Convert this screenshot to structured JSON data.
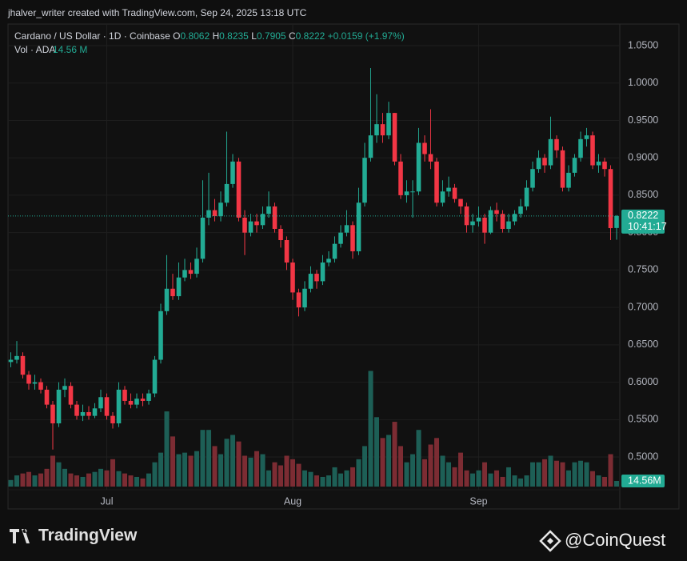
{
  "header": {
    "credit": "jhalver_writer created with TradingView.com, Sep 24, 2025 13:18 UTC"
  },
  "chart_data": {
    "type": "candlestick",
    "title": "Cardano / US Dollar · 1D · Coinbase",
    "legend_labels": [
      "O",
      "H",
      "L",
      "C"
    ],
    "change": "+0.0159 (+1.97%)",
    "volume_title": "Vol · ADA",
    "volume_legend": "14.56 M",
    "volume_axis_label": "14.56M",
    "countdown": "10:41:17",
    "up_color": "#22ab94",
    "down_color": "#f23645",
    "vol_up_color": "#1d5f56",
    "vol_down_color": "#7c2c33",
    "grid": true,
    "ylim": [
      0.4305,
      1.0789
    ],
    "yticks": [
      {
        "value": 0.5,
        "label": "0.5000"
      },
      {
        "value": 0.55,
        "label": "0.5500"
      },
      {
        "value": 0.6,
        "label": "0.6000"
      },
      {
        "value": 0.65,
        "label": "0.6500"
      },
      {
        "value": 0.7,
        "label": "0.7000"
      },
      {
        "value": 0.75,
        "label": "0.7500"
      },
      {
        "value": 0.8,
        "label": "0.8000"
      },
      {
        "value": 0.85,
        "label": "0.8500"
      },
      {
        "value": 0.9,
        "label": "0.9000"
      },
      {
        "value": 0.95,
        "label": "0.9500"
      },
      {
        "value": 1.0,
        "label": "1.0000"
      },
      {
        "value": 1.05,
        "label": "1.0500"
      }
    ],
    "vol_ylim": [
      0,
      1200
    ],
    "categories": [
      null,
      null,
      null,
      null,
      null,
      null,
      null,
      null,
      null,
      null,
      null,
      null,
      null,
      null,
      null,
      null,
      "Jul",
      null,
      null,
      null,
      null,
      null,
      null,
      null,
      null,
      null,
      null,
      null,
      null,
      null,
      null,
      null,
      null,
      null,
      null,
      null,
      null,
      null,
      null,
      null,
      null,
      null,
      null,
      null,
      null,
      null,
      null,
      "Aug",
      null,
      null,
      null,
      null,
      null,
      null,
      null,
      null,
      null,
      null,
      null,
      null,
      null,
      null,
      null,
      null,
      null,
      null,
      null,
      null,
      null,
      null,
      null,
      null,
      null,
      null,
      null,
      null,
      null,
      null,
      "Sep",
      null,
      null,
      null,
      null,
      null,
      null,
      null,
      null,
      null,
      null,
      null,
      null,
      null,
      null,
      null,
      null,
      null,
      null,
      null,
      null,
      null,
      null,
      null
    ],
    "open": [
      0.627,
      0.63,
      0.635,
      0.61,
      0.598,
      0.6,
      0.59,
      0.57,
      0.545,
      0.59,
      0.595,
      0.57,
      0.555,
      0.56,
      0.555,
      0.565,
      0.58,
      0.555,
      0.545,
      0.59,
      0.575,
      0.57,
      0.578,
      0.575,
      0.585,
      0.63,
      0.695,
      0.725,
      0.715,
      0.74,
      0.75,
      0.745,
      0.765,
      0.82,
      0.83,
      0.822,
      0.84,
      0.865,
      0.895,
      0.82,
      0.8,
      0.815,
      0.81,
      0.825,
      0.835,
      0.805,
      0.79,
      0.76,
      0.72,
      0.7,
      0.725,
      0.745,
      0.735,
      0.76,
      0.765,
      0.785,
      0.8,
      0.81,
      0.775,
      0.84,
      0.9,
      0.93,
      0.945,
      0.93,
      0.96,
      0.895,
      0.85,
      0.855,
      0.855,
      0.92,
      0.905,
      0.895,
      0.84,
      0.855,
      0.86,
      0.845,
      0.835,
      0.81,
      0.815,
      0.82,
      0.8,
      0.83,
      0.825,
      0.805,
      0.815,
      0.825,
      0.835,
      0.86,
      0.885,
      0.9,
      0.89,
      0.925,
      0.91,
      0.86,
      0.88,
      0.9,
      0.925,
      0.93,
      0.89,
      0.895,
      0.885,
      0.8062
    ],
    "high": [
      0.64,
      0.655,
      0.64,
      0.615,
      0.61,
      0.605,
      0.595,
      0.575,
      0.6,
      0.605,
      0.6,
      0.575,
      0.57,
      0.568,
      0.572,
      0.59,
      0.585,
      0.56,
      0.6,
      0.595,
      0.585,
      0.585,
      0.585,
      0.59,
      0.635,
      0.705,
      0.77,
      0.745,
      0.76,
      0.765,
      0.76,
      0.78,
      0.87,
      0.88,
      0.845,
      0.855,
      0.935,
      0.905,
      0.9,
      0.83,
      0.825,
      0.825,
      0.835,
      0.855,
      0.84,
      0.81,
      0.795,
      0.765,
      0.725,
      0.735,
      0.755,
      0.75,
      0.77,
      0.775,
      0.795,
      0.81,
      0.83,
      0.815,
      0.86,
      0.92,
      1.02,
      0.985,
      0.96,
      0.975,
      0.96,
      0.905,
      0.87,
      0.87,
      0.94,
      0.93,
      0.965,
      0.9,
      0.87,
      0.875,
      0.865,
      0.845,
      0.84,
      0.825,
      0.835,
      0.825,
      0.835,
      0.84,
      0.83,
      0.825,
      0.83,
      0.845,
      0.87,
      0.895,
      0.91,
      0.905,
      0.955,
      0.93,
      0.915,
      0.89,
      0.905,
      0.935,
      0.94,
      0.935,
      0.905,
      0.9,
      0.89,
      0.8235
    ],
    "low": [
      0.62,
      0.625,
      0.605,
      0.59,
      0.59,
      0.585,
      0.565,
      0.51,
      0.54,
      0.58,
      0.565,
      0.55,
      0.548,
      0.55,
      0.552,
      0.56,
      0.55,
      0.538,
      0.54,
      0.57,
      0.565,
      0.565,
      0.568,
      0.57,
      0.58,
      0.625,
      0.69,
      0.71,
      0.71,
      0.735,
      0.738,
      0.74,
      0.76,
      0.81,
      0.815,
      0.815,
      0.835,
      0.86,
      0.815,
      0.77,
      0.795,
      0.8,
      0.805,
      0.82,
      0.8,
      0.78,
      0.75,
      0.71,
      0.688,
      0.695,
      0.72,
      0.725,
      0.73,
      0.755,
      0.76,
      0.78,
      0.795,
      0.765,
      0.77,
      0.835,
      0.895,
      0.92,
      0.92,
      0.925,
      0.89,
      0.845,
      0.84,
      0.82,
      0.85,
      0.895,
      0.885,
      0.835,
      0.835,
      0.848,
      0.84,
      0.825,
      0.8,
      0.8,
      0.808,
      0.785,
      0.798,
      0.815,
      0.8,
      0.8,
      0.81,
      0.82,
      0.83,
      0.855,
      0.88,
      0.88,
      0.885,
      0.9,
      0.855,
      0.855,
      0.875,
      0.895,
      0.915,
      0.885,
      0.88,
      0.875,
      0.79,
      0.7905
    ],
    "close": [
      0.63,
      0.635,
      0.61,
      0.598,
      0.6,
      0.59,
      0.57,
      0.545,
      0.59,
      0.595,
      0.57,
      0.555,
      0.56,
      0.555,
      0.565,
      0.58,
      0.555,
      0.545,
      0.59,
      0.575,
      0.57,
      0.578,
      0.575,
      0.585,
      0.63,
      0.695,
      0.725,
      0.715,
      0.74,
      0.75,
      0.745,
      0.765,
      0.82,
      0.83,
      0.822,
      0.84,
      0.865,
      0.895,
      0.82,
      0.8,
      0.815,
      0.81,
      0.825,
      0.835,
      0.805,
      0.79,
      0.76,
      0.72,
      0.7,
      0.725,
      0.745,
      0.735,
      0.76,
      0.765,
      0.785,
      0.8,
      0.81,
      0.775,
      0.84,
      0.9,
      0.93,
      0.945,
      0.93,
      0.96,
      0.895,
      0.85,
      0.855,
      0.855,
      0.92,
      0.905,
      0.895,
      0.84,
      0.855,
      0.86,
      0.845,
      0.835,
      0.81,
      0.815,
      0.82,
      0.8,
      0.83,
      0.825,
      0.805,
      0.815,
      0.825,
      0.835,
      0.86,
      0.885,
      0.9,
      0.89,
      0.925,
      0.91,
      0.86,
      0.88,
      0.9,
      0.925,
      0.93,
      0.89,
      0.895,
      0.885,
      0.806,
      0.8222
    ],
    "volume": [
      17,
      29,
      34,
      38,
      29,
      34,
      46,
      80,
      63,
      46,
      34,
      29,
      25,
      34,
      38,
      46,
      42,
      71,
      40,
      34,
      29,
      25,
      21,
      34,
      63,
      88,
      195,
      130,
      84,
      88,
      80,
      92,
      147,
      147,
      105,
      84,
      124,
      134,
      117,
      80,
      75,
      92,
      84,
      42,
      63,
      55,
      80,
      71,
      59,
      42,
      38,
      29,
      25,
      29,
      50,
      34,
      42,
      50,
      71,
      105,
      300,
      180,
      126,
      134,
      168,
      105,
      63,
      84,
      147,
      71,
      109,
      126,
      80,
      63,
      50,
      88,
      42,
      34,
      42,
      63,
      34,
      42,
      25,
      50,
      29,
      21,
      29,
      63,
      63,
      71,
      80,
      67,
      63,
      42,
      63,
      67,
      63,
      40,
      29,
      25,
      84,
      14.56
    ]
  },
  "footer": {
    "brand": "TradingView",
    "watermark": "@CoinQuest"
  }
}
